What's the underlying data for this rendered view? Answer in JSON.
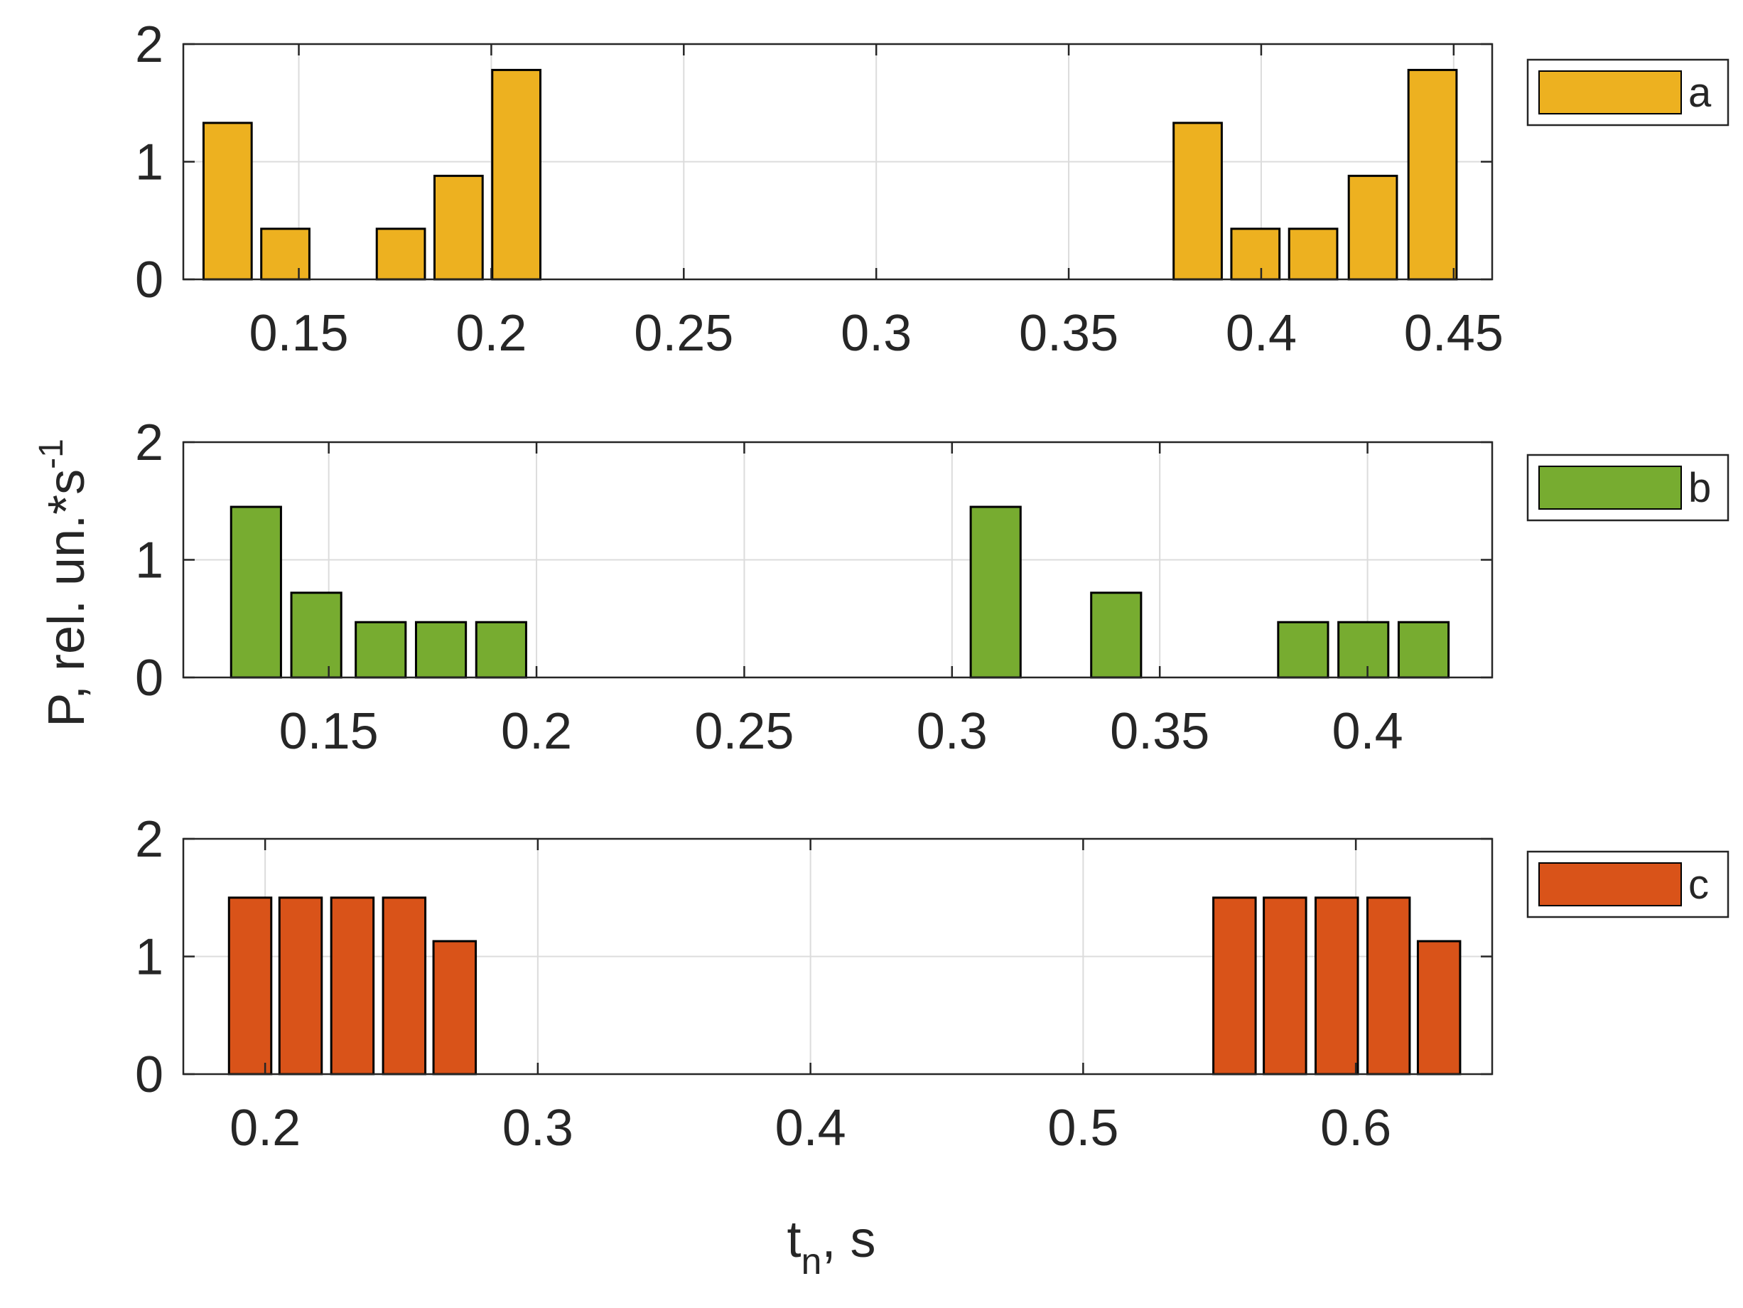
{
  "chart_data": [
    {
      "type": "bar",
      "panel": "a",
      "legend": "a",
      "color": "#EDB120",
      "bar_width": 0.0125,
      "xlim": [
        0.12,
        0.46
      ],
      "ylim": [
        0,
        2
      ],
      "xticks": [
        0.15,
        0.2,
        0.25,
        0.3,
        0.35,
        0.4,
        0.45
      ],
      "xtick_labels": [
        "0.15",
        "0.2",
        "0.25",
        "0.3",
        "0.35",
        "0.4",
        "0.45"
      ],
      "yticks": [
        0,
        1,
        2
      ],
      "ytick_labels": [
        "0",
        "1",
        "2"
      ],
      "x": [
        0.1315,
        0.1465,
        0.1765,
        0.1915,
        0.2065,
        0.3835,
        0.3985,
        0.4135,
        0.429,
        0.4445
      ],
      "values": [
        1.33,
        0.43,
        0.43,
        0.88,
        1.78,
        1.33,
        0.43,
        0.43,
        0.88,
        1.78
      ],
      "grid": true
    },
    {
      "type": "bar",
      "panel": "b",
      "legend": "b",
      "color": "#77AC30",
      "bar_width": 0.012,
      "xlim": [
        0.115,
        0.43
      ],
      "ylim": [
        0,
        2
      ],
      "xticks": [
        0.15,
        0.2,
        0.25,
        0.3,
        0.35,
        0.4
      ],
      "xtick_labels": [
        "0.15",
        "0.2",
        "0.25",
        "0.3",
        "0.35",
        "0.4"
      ],
      "yticks": [
        0,
        1,
        2
      ],
      "ytick_labels": [
        "0",
        "1",
        "2"
      ],
      "x": [
        0.1325,
        0.147,
        0.1625,
        0.177,
        0.1915,
        0.3105,
        0.3395,
        0.3845,
        0.399,
        0.4135
      ],
      "values": [
        1.45,
        0.72,
        0.47,
        0.47,
        0.47,
        1.45,
        0.72,
        0.47,
        0.47,
        0.47
      ],
      "grid": true
    },
    {
      "type": "bar",
      "panel": "c",
      "legend": "c",
      "color": "#D95319",
      "bar_width": 0.0155,
      "xlim": [
        0.17,
        0.65
      ],
      "ylim": [
        0,
        2
      ],
      "xticks": [
        0.2,
        0.3,
        0.4,
        0.5,
        0.6
      ],
      "xtick_labels": [
        "0.2",
        "0.3",
        "0.4",
        "0.5",
        "0.6"
      ],
      "yticks": [
        0,
        1,
        2
      ],
      "ytick_labels": [
        "0",
        "1",
        "2"
      ],
      "x": [
        0.1945,
        0.213,
        0.232,
        0.251,
        0.2695,
        0.5555,
        0.574,
        0.593,
        0.612,
        0.6305
      ],
      "values": [
        1.5,
        1.5,
        1.5,
        1.5,
        1.13,
        1.5,
        1.5,
        1.5,
        1.5,
        1.13
      ],
      "grid": true
    }
  ],
  "axes": {
    "ylabel": "P, rel. un.*s",
    "ylabel_superscript": "-1",
    "xlabel": "t",
    "xlabel_subscript": "n",
    "xlabel_suffix": ", s"
  }
}
